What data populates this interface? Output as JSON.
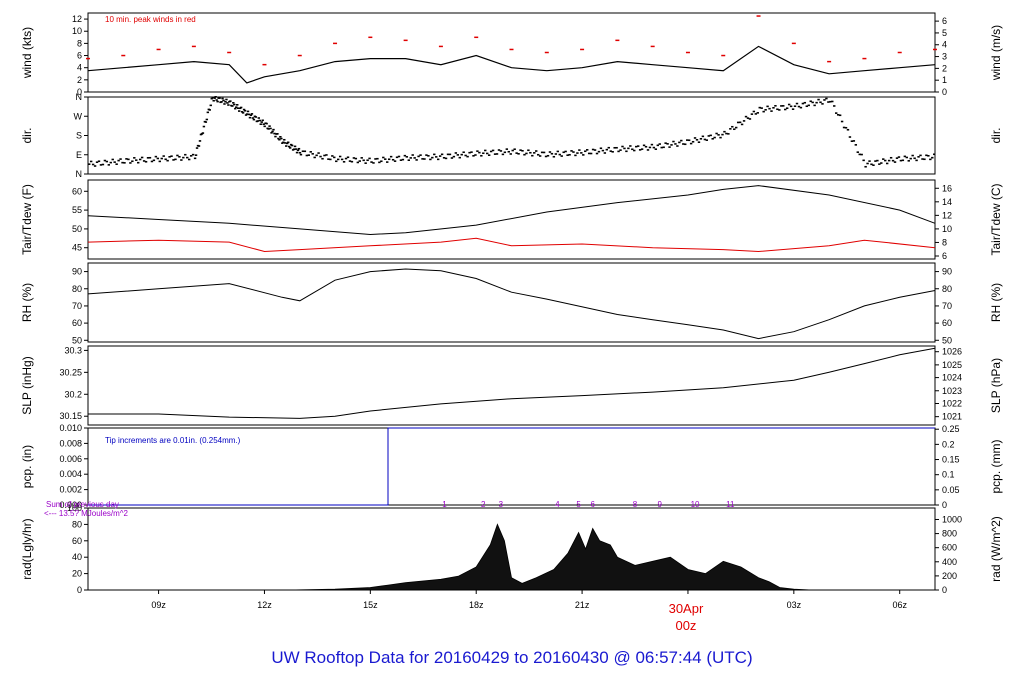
{
  "title": "UW Rooftop Data for 20160429  to  20160430 @ 06:57:44  (UTC)",
  "colors": {
    "axis": "#000000",
    "red": "#e00000",
    "blue": "#0000c0",
    "purple": "#9a00c8",
    "title": "#1a1ad0",
    "bars": "#111111"
  },
  "chart_data": {
    "type": "line",
    "x_range_hours": [
      7.0,
      31.0
    ],
    "x_ticks": [
      {
        "hour": 9,
        "label": "09z"
      },
      {
        "hour": 12,
        "label": "12z"
      },
      {
        "hour": 15,
        "label": "15z"
      },
      {
        "hour": 18,
        "label": "18z"
      },
      {
        "hour": 21,
        "label": "21z"
      },
      {
        "hour": 27,
        "label": "03z"
      },
      {
        "hour": 30,
        "label": "06z"
      }
    ],
    "date_marker": {
      "hour": 24,
      "date": "30Apr",
      "time": "00z"
    },
    "panels": [
      {
        "id": "wind",
        "ylabel_left": "wind (kts)",
        "ylabel_right": "wind (m/s)",
        "ylim": [
          0,
          13
        ],
        "left_ticks": [
          0,
          2,
          4,
          6,
          8,
          10,
          12
        ],
        "right_ticks": [
          {
            "v": 0,
            "at": 0
          },
          {
            "v": 1,
            "at": 1.944
          },
          {
            "v": 2,
            "at": 3.888
          },
          {
            "v": 3,
            "at": 5.832
          },
          {
            "v": 4,
            "at": 7.776
          },
          {
            "v": 5,
            "at": 9.72
          },
          {
            "v": 6,
            "at": 11.664
          }
        ],
        "annotation": "10 min. peak winds in red",
        "series": [
          {
            "color": "#000000",
            "x": [
              7,
              8,
              9,
              10,
              11,
              11.5,
              12,
              13,
              14,
              15,
              16,
              17,
              18,
              19,
              20,
              21,
              22,
              23,
              24,
              25,
              26,
              27,
              28,
              29,
              30,
              31
            ],
            "y": [
              3.5,
              4,
              4.5,
              5,
              4.5,
              1.5,
              2.5,
              3.5,
              5,
              5.5,
              5.5,
              4.5,
              6,
              4,
              3.5,
              4,
              5,
              4.5,
              4,
              3.5,
              7.5,
              4.5,
              3,
              3.5,
              4,
              4.5
            ]
          }
        ],
        "peaks_x": [
          7,
          8,
          9,
          10,
          11,
          12,
          13,
          14,
          15,
          16,
          17,
          18,
          19,
          20,
          21,
          22,
          23,
          24,
          25,
          26,
          27,
          28,
          29,
          30,
          31
        ],
        "peaks_y": [
          5.5,
          6,
          7,
          7.5,
          6.5,
          4.5,
          6,
          8,
          9,
          8.5,
          7.5,
          9,
          7,
          6.5,
          7,
          8.5,
          7.5,
          6.5,
          6,
          12.5,
          8,
          5,
          5.5,
          6.5,
          7
        ]
      },
      {
        "id": "dir",
        "ylabel_left": "dir.",
        "ylabel_right": "dir.",
        "ylim": [
          0,
          360
        ],
        "left_ticks": [
          {
            "v": "N",
            "at": 0
          },
          {
            "v": "E",
            "at": 90
          },
          {
            "v": "S",
            "at": 180
          },
          {
            "v": "W",
            "at": 270
          },
          {
            "v": "N",
            "at": 360
          }
        ],
        "x": [
          7,
          8,
          9,
          10,
          10.5,
          11,
          11.5,
          12,
          12.5,
          13,
          14,
          15,
          16,
          17,
          18,
          19,
          20,
          21,
          22,
          23,
          24,
          25,
          26,
          27,
          28,
          29,
          30,
          31
        ],
        "y": [
          45,
          60,
          70,
          80,
          355,
          330,
          280,
          230,
          150,
          100,
          70,
          60,
          75,
          80,
          95,
          105,
          90,
          100,
          115,
          125,
          150,
          185,
          300,
          315,
          345,
          45,
          70,
          80
        ]
      },
      {
        "id": "temp",
        "ylabel_left": "Tair/Tdew (F)",
        "ylabel_right": "Tair/Tdew (C)",
        "ylim": [
          42,
          63
        ],
        "left_ticks": [
          45,
          50,
          55,
          60
        ],
        "right_ticks": [
          {
            "v": 6,
            "at": 42.8
          },
          {
            "v": 8,
            "at": 46.4
          },
          {
            "v": 10,
            "at": 50.0
          },
          {
            "v": 12,
            "at": 53.6
          },
          {
            "v": 14,
            "at": 57.2
          },
          {
            "v": 16,
            "at": 60.8
          }
        ],
        "series": [
          {
            "name": "Tair",
            "color": "#000000",
            "x": [
              7,
              9,
              11,
              13,
              15,
              16,
              18,
              20,
              22,
              24,
              25,
              26,
              28,
              30,
              31
            ],
            "y": [
              53.5,
              52.5,
              51.5,
              50.0,
              48.5,
              49.0,
              51.0,
              54.5,
              57.0,
              59.0,
              60.5,
              61.5,
              59.0,
              55.0,
              51.5
            ]
          },
          {
            "name": "Tdew",
            "color": "#e00000",
            "x": [
              7,
              9,
              11,
              12,
              13,
              15,
              17,
              18,
              19,
              21,
              23,
              25,
              26,
              28,
              29,
              31
            ],
            "y": [
              46.5,
              47.0,
              46.5,
              44.0,
              44.5,
              45.5,
              46.5,
              47.5,
              45.5,
              46.0,
              45.0,
              44.5,
              44.0,
              45.5,
              47.0,
              45.0
            ]
          }
        ]
      },
      {
        "id": "rh",
        "ylabel_left": "RH (%)",
        "ylabel_right": "RH (%)",
        "ylim": [
          49,
          95
        ],
        "left_ticks": [
          50,
          60,
          70,
          80,
          90
        ],
        "right_ticks": [
          50,
          60,
          70,
          80,
          90
        ],
        "x": [
          7,
          9,
          11,
          12.5,
          13,
          14,
          15,
          16,
          17,
          18,
          19,
          20,
          22,
          23,
          24,
          25,
          26,
          27,
          28,
          29,
          30,
          31
        ],
        "y": [
          77,
          80,
          83,
          75,
          73,
          85,
          90,
          91.5,
          90.5,
          86,
          78,
          74,
          65,
          62,
          59,
          56,
          51,
          55,
          62,
          70,
          75,
          79
        ]
      },
      {
        "id": "slp",
        "ylabel_left": "SLP (inHg)",
        "ylabel_right": "SLP (hPa)",
        "ylim": [
          30.13,
          30.31
        ],
        "left_ticks": [
          30.15,
          30.2,
          30.25,
          30.3
        ],
        "right_ticks": [
          {
            "v": 1021,
            "at": 30.149
          },
          {
            "v": 1022,
            "at": 30.179
          },
          {
            "v": 1023,
            "at": 30.208
          },
          {
            "v": 1024,
            "at": 30.238
          },
          {
            "v": 1025,
            "at": 30.267
          },
          {
            "v": 1026,
            "at": 30.297
          }
        ],
        "x": [
          7,
          9,
          11,
          13,
          14,
          15,
          17,
          19,
          21,
          23,
          25,
          27,
          28,
          29,
          30,
          31
        ],
        "y": [
          30.155,
          30.155,
          30.148,
          30.145,
          30.15,
          30.162,
          30.178,
          30.19,
          30.197,
          30.205,
          30.215,
          30.232,
          30.25,
          30.27,
          30.29,
          30.305
        ]
      },
      {
        "id": "pcp",
        "ylabel_left": "pcp. (in)",
        "ylabel_right": "pcp. (mm)",
        "ylim": [
          0,
          0.01
        ],
        "left_ticks": [
          "0.000",
          "0.002",
          "0.004",
          "0.006",
          "0.008",
          "0.010"
        ],
        "right_ticks": [
          {
            "v": "0",
            "at": 0
          },
          {
            "v": "0.05",
            "at": 0.001969
          },
          {
            "v": "0.1",
            "at": 0.003937
          },
          {
            "v": "0.15",
            "at": 0.005906
          },
          {
            "v": "0.2",
            "at": 0.007874
          },
          {
            "v": "0.25",
            "at": 0.009843
          }
        ],
        "annotation": "Tip increments are 0.01in. (0.254mm.)",
        "x": [
          7,
          15.5,
          15.5,
          31
        ],
        "y": [
          0,
          0,
          0.01,
          0.01
        ]
      },
      {
        "id": "rad",
        "ylabel_left": "rad(Lgly/hr)",
        "ylabel_right": "rad (W/m^2)",
        "ylim": [
          0,
          100
        ],
        "left_ticks": [
          0,
          20,
          40,
          60,
          80,
          100
        ],
        "right_ticks": [
          {
            "v": 0,
            "at": 0
          },
          {
            "v": 200,
            "at": 17.2
          },
          {
            "v": 400,
            "at": 34.4
          },
          {
            "v": 600,
            "at": 51.6
          },
          {
            "v": 800,
            "at": 68.8
          },
          {
            "v": 1000,
            "at": 86.0
          }
        ],
        "annotation_line1": "Sum of previous day",
        "annotation_line2": "<--- 13.5? MJoules/m^2",
        "hour_labels": [
          {
            "hour": 17.1,
            "label": "1"
          },
          {
            "hour": 18.2,
            "label": "2"
          },
          {
            "hour": 18.7,
            "label": "3"
          },
          {
            "hour": 20.3,
            "label": "4"
          },
          {
            "hour": 20.9,
            "label": "5"
          },
          {
            "hour": 21.3,
            "label": "6"
          },
          {
            "hour": 22.5,
            "label": "8"
          },
          {
            "hour": 23.2,
            "label": "9"
          },
          {
            "hour": 24.2,
            "label": "10"
          },
          {
            "hour": 25.2,
            "label": "11"
          }
        ],
        "x": [
          12.7,
          14,
          15,
          15.5,
          16,
          17,
          17.5,
          18,
          18.4,
          18.6,
          18.8,
          19,
          19.3,
          19.7,
          20.2,
          20.6,
          20.9,
          21.1,
          21.3,
          21.5,
          21.8,
          22,
          22.5,
          23,
          23.5,
          24,
          24.5,
          25,
          25.5,
          26,
          26.3,
          26.6,
          27,
          27.5
        ],
        "y": [
          0,
          1,
          3,
          6,
          9,
          13,
          17,
          28,
          55,
          80,
          60,
          15,
          8,
          15,
          25,
          45,
          70,
          50,
          75,
          60,
          55,
          40,
          30,
          35,
          40,
          25,
          20,
          35,
          28,
          15,
          10,
          3,
          1,
          0
        ]
      }
    ]
  }
}
